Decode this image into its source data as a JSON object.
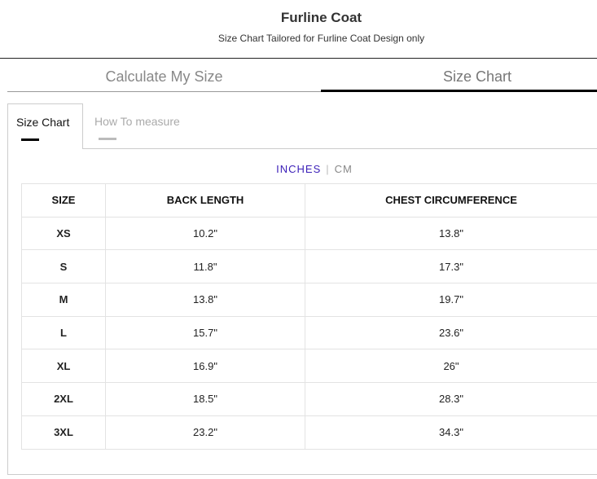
{
  "header": {
    "title": "Furline Coat",
    "subtitle": "Size Chart Tailored for Furline Coat Design only"
  },
  "main_tabs": [
    {
      "label": "Calculate My Size",
      "active": false
    },
    {
      "label": "Size Chart",
      "active": true
    }
  ],
  "sub_tabs": [
    {
      "label": "Size Chart",
      "active": true
    },
    {
      "label": "How To measure",
      "active": false
    }
  ],
  "units": {
    "inches": "INCHES",
    "separator": "|",
    "cm": "CM",
    "selected": "INCHES",
    "accent": "#3b1fb8"
  },
  "table": {
    "headers": [
      "SIZE",
      "BACK LENGTH",
      "CHEST CIRCUMFERENCE"
    ],
    "rows": [
      [
        "XS",
        "10.2\"",
        "13.8\""
      ],
      [
        "S",
        "11.8\"",
        "17.3\""
      ],
      [
        "M",
        "13.8\"",
        "19.7\""
      ],
      [
        "L",
        "15.7\"",
        "23.6\""
      ],
      [
        "XL",
        "16.9\"",
        "26\""
      ],
      [
        "2XL",
        "18.5\"",
        "28.3\""
      ],
      [
        "3XL",
        "23.2\"",
        "34.3\""
      ]
    ]
  }
}
